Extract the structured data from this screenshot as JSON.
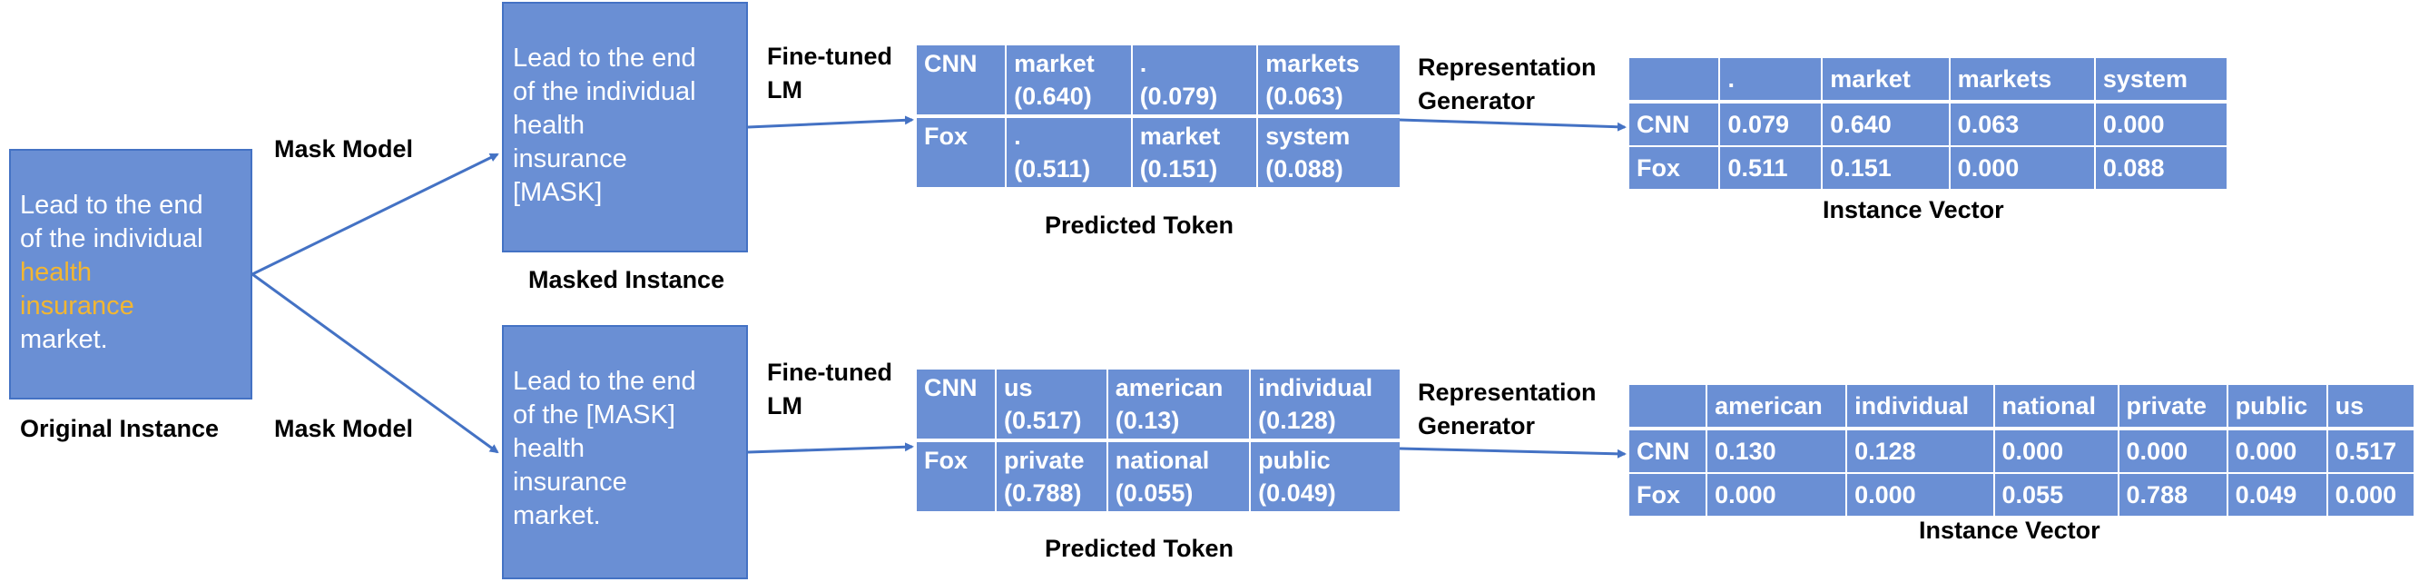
{
  "original": {
    "lines": [
      "Lead to the end",
      "of the individual"
    ],
    "highlight": [
      "health",
      "insurance"
    ],
    "tail": "market.",
    "caption": "Original Instance"
  },
  "mask_label_top": "Mask Model",
  "mask_label_bottom": "Mask Model",
  "masked_top": {
    "lines": [
      "Lead to the end",
      "of the individual",
      "health",
      "insurance",
      "[MASK]"
    ],
    "caption": "Masked Instance"
  },
  "masked_bottom": {
    "lines": [
      "Lead to the end",
      "of the [MASK]",
      "health",
      "insurance",
      "market."
    ]
  },
  "lm_label": [
    "Fine-tuned",
    "LM"
  ],
  "rep_label": [
    "Representation",
    "Generator"
  ],
  "predicted_caption": "Predicted Token",
  "vector_caption": "Instance Vector",
  "pred_top": {
    "rows": [
      {
        "src": "CNN",
        "cells": [
          [
            "market",
            "(0.640)"
          ],
          [
            ".",
            "(0.079)"
          ],
          [
            "markets",
            "(0.063)"
          ]
        ]
      },
      {
        "src": "Fox",
        "cells": [
          [
            ".",
            "(0.511)"
          ],
          [
            "market",
            "(0.151)"
          ],
          [
            "system",
            "(0.088)"
          ]
        ]
      }
    ]
  },
  "pred_bottom": {
    "rows": [
      {
        "src": "CNN",
        "cells": [
          [
            "us",
            "(0.517)"
          ],
          [
            "american",
            "(0.13)"
          ],
          [
            "individual",
            "(0.128)"
          ]
        ]
      },
      {
        "src": "Fox",
        "cells": [
          [
            "private",
            "(0.788)"
          ],
          [
            "national",
            "(0.055)"
          ],
          [
            "public",
            "(0.049)"
          ]
        ]
      }
    ]
  },
  "vec_top": {
    "header": [
      ".",
      "market",
      "markets",
      "system"
    ],
    "rows": [
      {
        "src": "CNN",
        "values": [
          "0.079",
          "0.640",
          "0.063",
          "0.000"
        ]
      },
      {
        "src": "Fox",
        "values": [
          "0.511",
          "0.151",
          "0.000",
          "0.088"
        ]
      }
    ]
  },
  "vec_bottom": {
    "header": [
      "american",
      "individual",
      "national",
      "private",
      "public",
      "us"
    ],
    "rows": [
      {
        "src": "CNN",
        "values": [
          "0.130",
          "0.128",
          "0.000",
          "0.000",
          "0.000",
          "0.517"
        ]
      },
      {
        "src": "Fox",
        "values": [
          "0.000",
          "0.000",
          "0.055",
          "0.788",
          "0.049",
          "0.000"
        ]
      }
    ]
  },
  "colors": {
    "box_fill": "#6a8fd4",
    "box_border": "#4472c4",
    "highlight": "#f2b632",
    "arrow": "#4472c4"
  }
}
